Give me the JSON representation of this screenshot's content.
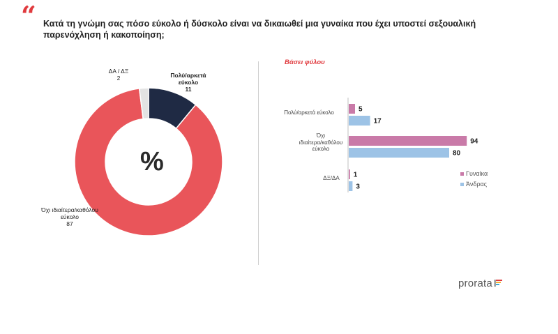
{
  "question": "Κατά τη γνώμη σας πόσο εύκολο ή δύσκολο είναι να δικαιωθεί μια γυναίκα που έχει υποστεί σεξουαλική παρενόχληση ή κακοποίηση;",
  "quote_mark": "“",
  "right_subtitle": "Βάσει φύλου",
  "donut_center": "%",
  "logo_text": "prorata",
  "colors": {
    "easy": "#1f2a44",
    "not_easy": "#e9555a",
    "dk": "#e3e3e3",
    "women": "#c97aa8",
    "men": "#9dc3e6",
    "accent": "#e03a3e"
  },
  "chart_data": [
    {
      "type": "pie",
      "style": "donut",
      "slices": [
        {
          "label": "Πολύ/αρκετά εύκολο",
          "value": 11,
          "color": "#1f2a44"
        },
        {
          "label": "Όχι ιδιαίτερα/καθόλου εύκολο",
          "value": 87,
          "color": "#e9555a"
        },
        {
          "label": "ΔΑ / ΔΞ",
          "value": 2,
          "color": "#e3e3e3"
        }
      ],
      "labels": {
        "easy": {
          "name_line1": "Πολύ/αρκετά",
          "name_line2": "εύκολο",
          "value": "11"
        },
        "not_easy": {
          "name_line1": "Όχι ιδιαίτερα/καθόλου",
          "name_line2": "εύκολο",
          "value": "87"
        },
        "dk": {
          "name_line1": "ΔΑ / ΔΞ",
          "value": "2"
        }
      }
    },
    {
      "type": "bar",
      "orientation": "horizontal",
      "categories": [
        "Πολύ/αρκετά εύκολο",
        "Όχι ιδιαίτερα/καθόλου εύκολο",
        "ΔΞ/ΔΑ"
      ],
      "category_lines": [
        [
          "Πολύ/αρκετά εύκολο"
        ],
        [
          "Όχι",
          "ιδιαίτερα/καθόλου",
          "εύκολο"
        ],
        [
          "ΔΞ/ΔΑ"
        ]
      ],
      "series": [
        {
          "name": "Γυναίκα",
          "values": [
            5,
            94,
            1
          ],
          "color": "#c97aa8"
        },
        {
          "name": "Άνδρας",
          "values": [
            17,
            80,
            3
          ],
          "color": "#9dc3e6"
        }
      ],
      "legend": [
        "Γυναίκα",
        "Άνδρας"
      ]
    }
  ]
}
